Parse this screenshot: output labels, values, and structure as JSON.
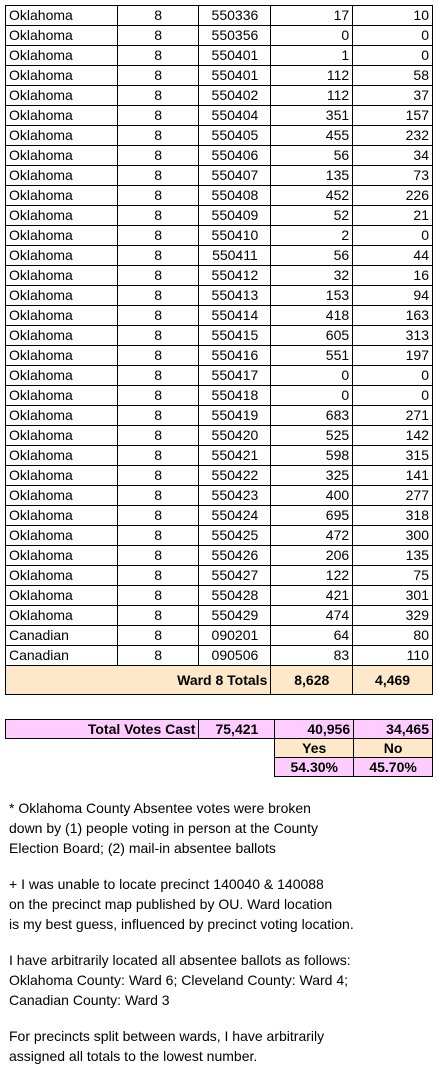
{
  "rows": [
    [
      "Oklahoma",
      "8",
      "550336",
      "17",
      "10"
    ],
    [
      "Oklahoma",
      "8",
      "550356",
      "0",
      "0"
    ],
    [
      "Oklahoma",
      "8",
      "550401",
      "1",
      "0"
    ],
    [
      "Oklahoma",
      "8",
      "550401",
      "112",
      "58"
    ],
    [
      "Oklahoma",
      "8",
      "550402",
      "112",
      "37"
    ],
    [
      "Oklahoma",
      "8",
      "550404",
      "351",
      "157"
    ],
    [
      "Oklahoma",
      "8",
      "550405",
      "455",
      "232"
    ],
    [
      "Oklahoma",
      "8",
      "550406",
      "56",
      "34"
    ],
    [
      "Oklahoma",
      "8",
      "550407",
      "135",
      "73"
    ],
    [
      "Oklahoma",
      "8",
      "550408",
      "452",
      "226"
    ],
    [
      "Oklahoma",
      "8",
      "550409",
      "52",
      "21"
    ],
    [
      "Oklahoma",
      "8",
      "550410",
      "2",
      "0"
    ],
    [
      "Oklahoma",
      "8",
      "550411",
      "56",
      "44"
    ],
    [
      "Oklahoma",
      "8",
      "550412",
      "32",
      "16"
    ],
    [
      "Oklahoma",
      "8",
      "550413",
      "153",
      "94"
    ],
    [
      "Oklahoma",
      "8",
      "550414",
      "418",
      "163"
    ],
    [
      "Oklahoma",
      "8",
      "550415",
      "605",
      "313"
    ],
    [
      "Oklahoma",
      "8",
      "550416",
      "551",
      "197"
    ],
    [
      "Oklahoma",
      "8",
      "550417",
      "0",
      "0"
    ],
    [
      "Oklahoma",
      "8",
      "550418",
      "0",
      "0"
    ],
    [
      "Oklahoma",
      "8",
      "550419",
      "683",
      "271"
    ],
    [
      "Oklahoma",
      "8",
      "550420",
      "525",
      "142"
    ],
    [
      "Oklahoma",
      "8",
      "550421",
      "598",
      "315"
    ],
    [
      "Oklahoma",
      "8",
      "550422",
      "325",
      "141"
    ],
    [
      "Oklahoma",
      "8",
      "550423",
      "400",
      "277"
    ],
    [
      "Oklahoma",
      "8",
      "550424",
      "695",
      "318"
    ],
    [
      "Oklahoma",
      "8",
      "550425",
      "472",
      "300"
    ],
    [
      "Oklahoma",
      "8",
      "550426",
      "206",
      "135"
    ],
    [
      "Oklahoma",
      "8",
      "550427",
      "122",
      "75"
    ],
    [
      "Oklahoma",
      "8",
      "550428",
      "421",
      "301"
    ],
    [
      "Oklahoma",
      "8",
      "550429",
      "474",
      "329"
    ],
    [
      "Canadian",
      "8",
      "090201",
      "64",
      "80"
    ],
    [
      "Canadian",
      "8",
      "090506",
      "83",
      "110"
    ]
  ],
  "ward_totals": {
    "label": "Ward 8 Totals",
    "yes": "8,628",
    "no": "4,469"
  },
  "summary": {
    "label": "Total Votes Cast",
    "total": "75,421",
    "yes": "40,956",
    "no": "34,465",
    "yes_label": "Yes",
    "no_label": "No",
    "yes_pct": "54.30%",
    "no_pct": "45.70%"
  },
  "notes": [
    "* Oklahoma County Absentee votes were broken\ndown by (1) people voting in person at the County\nElection Board; (2) mail-in absentee ballots",
    "+ I was unable to locate precinct 140040 & 140088\non the precinct map published by OU. Ward location\nis my best guess, influenced by precinct voting location.",
    "I have arbitrarily located all absentee ballots as follows:\nOklahoma County: Ward 6; Cleveland County: Ward 4;\nCanadian County: Ward 3",
    "For precincts split between wards, I have arbitrarily\nassigned all totals to the lowest number."
  ],
  "colors": {
    "totals_bg": "#fde9c9",
    "summary_bg": "#ffccff"
  }
}
